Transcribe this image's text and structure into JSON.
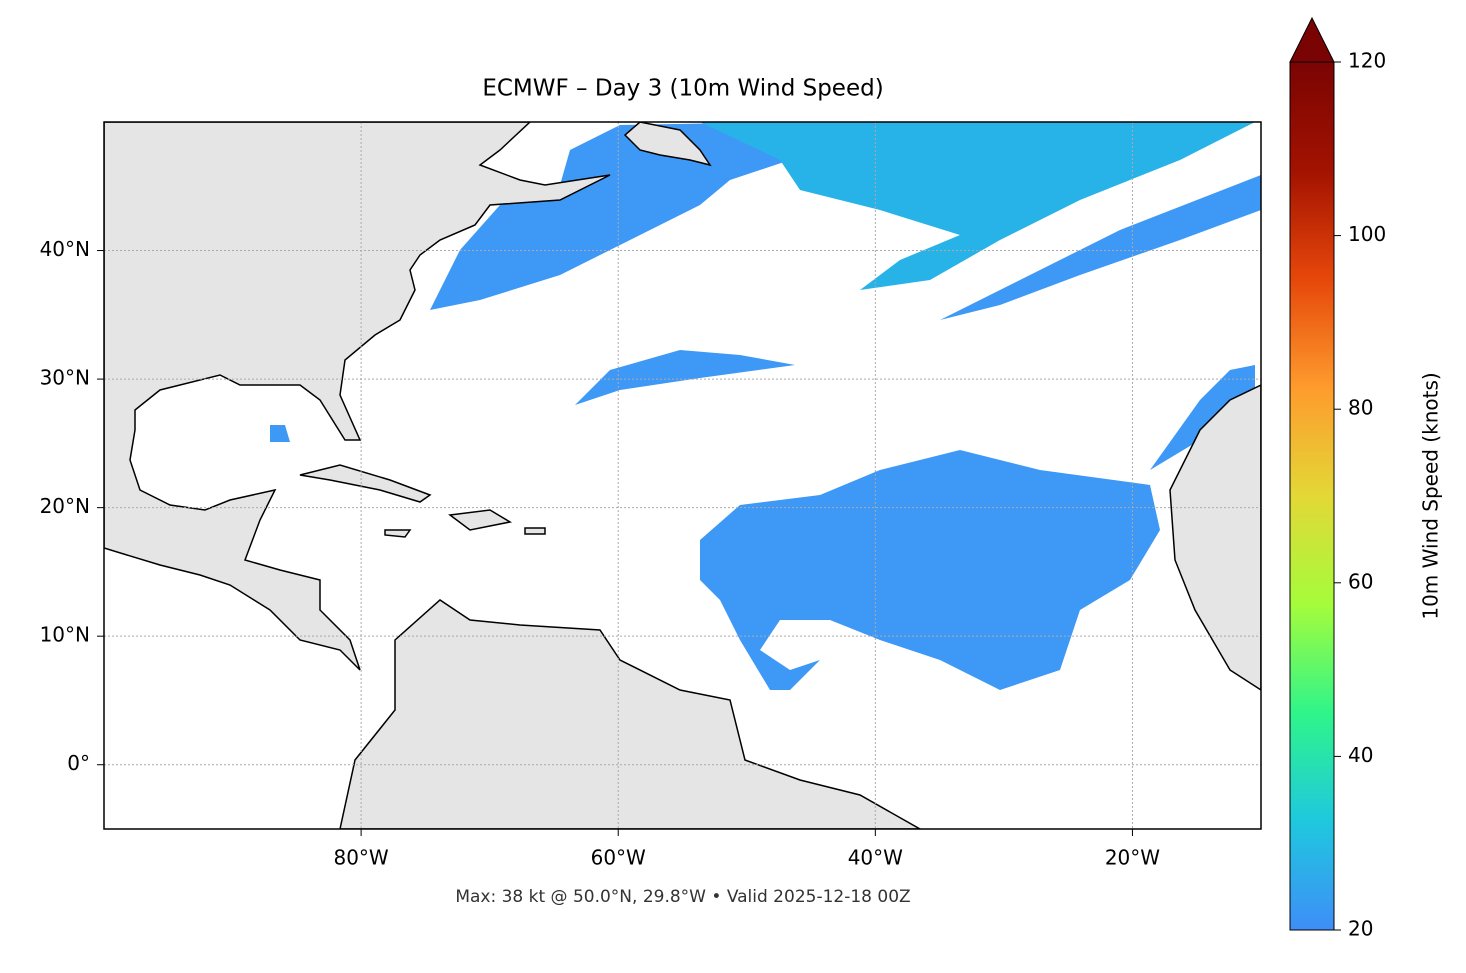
{
  "title": "ECMWF – Day 3 (10m Wind Speed)",
  "footnote": "Max: 38 kt @ 50.0°N, 29.8°W • Valid 2025-12-18 00Z",
  "map": {
    "xlim": [
      -100,
      -10
    ],
    "ylim": [
      -5,
      50
    ],
    "xticks": [
      {
        "value": -80,
        "label": "80°W"
      },
      {
        "value": -60,
        "label": "60°W"
      },
      {
        "value": -40,
        "label": "40°W"
      },
      {
        "value": -20,
        "label": "20°W"
      }
    ],
    "yticks": [
      {
        "value": 0,
        "label": "0°"
      },
      {
        "value": 10,
        "label": "10°N"
      },
      {
        "value": 20,
        "label": "20°N"
      },
      {
        "value": 30,
        "label": "30°N"
      },
      {
        "value": 40,
        "label": "40°N"
      }
    ],
    "grid": true
  },
  "colorbar": {
    "label": "10m Wind Speed (knots)",
    "lim": [
      20,
      120
    ],
    "ticks": [
      20,
      40,
      60,
      80,
      100,
      120
    ],
    "colors": [
      "#3e8ef7",
      "#1fc8de",
      "#2ff58a",
      "#a5fc3b",
      "#e3d836",
      "#fe9b2d",
      "#e6470a",
      "#a31201",
      "#7a0403"
    ]
  }
}
